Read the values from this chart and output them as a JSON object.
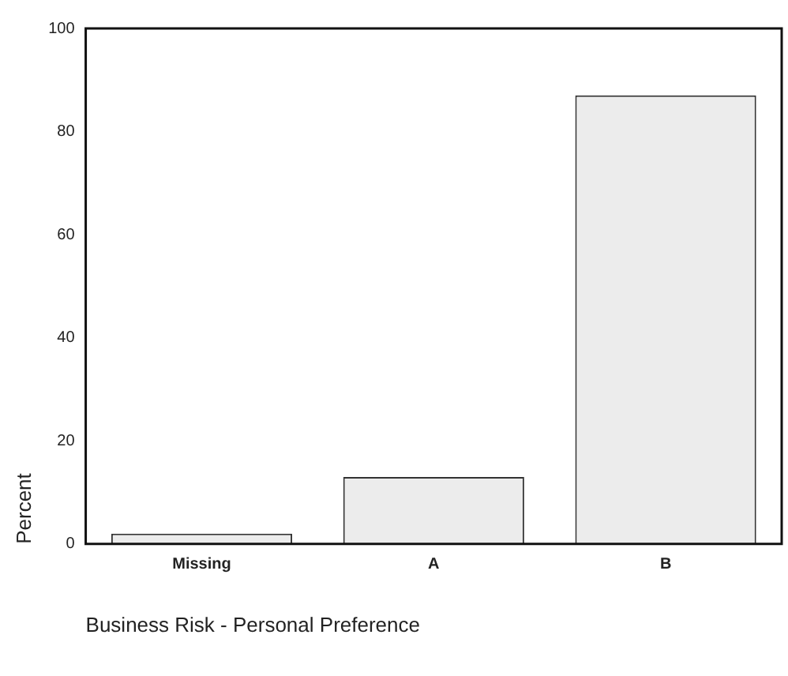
{
  "chart_data": {
    "type": "bar",
    "xlabel": "Business Risk - Personal Preference",
    "ylabel": "Percent",
    "categories": [
      "Missing",
      "A",
      "B"
    ],
    "values": [
      2,
      13,
      87
    ],
    "color": "#ececec",
    "ylim": [
      0,
      100
    ],
    "yticks": [
      0,
      20,
      40,
      60,
      80,
      100
    ],
    "grid": false,
    "legend": false
  }
}
